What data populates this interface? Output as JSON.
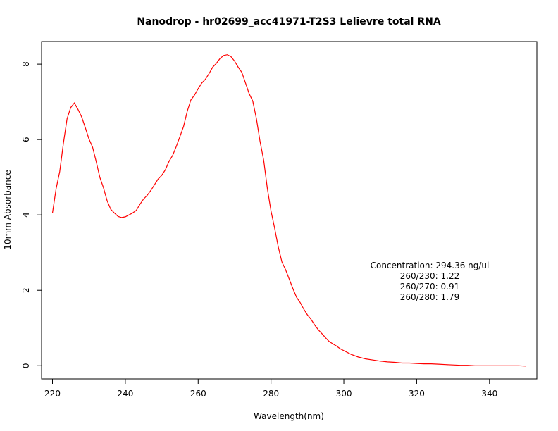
{
  "chart_data": {
    "type": "line",
    "title": "Nanodrop - hr02699_acc41971-T2S3 Lelievre total RNA",
    "xlabel": "Wavelength(nm)",
    "ylabel": "10mm Absorbance",
    "xlim": [
      217,
      353
    ],
    "ylim": [
      -0.35,
      8.6
    ],
    "xticks": [
      220,
      240,
      260,
      280,
      300,
      320,
      340
    ],
    "yticks": [
      0,
      2,
      4,
      6,
      8
    ],
    "grid": false,
    "line_color": "#ff0000",
    "annotations": [
      "Concentration: 294.36 ng/ul",
      "260/230: 1.22",
      "260/270: 0.91",
      "260/280: 1.79"
    ],
    "series": [
      {
        "x": [
          220,
          221,
          222,
          223,
          224,
          225,
          226,
          227,
          228,
          229,
          230,
          231,
          232,
          233,
          234,
          235,
          236,
          237,
          238,
          239,
          240,
          241,
          242,
          243,
          244,
          245,
          246,
          247,
          248,
          249,
          250,
          251,
          252,
          253,
          254,
          255,
          256,
          257,
          258,
          259,
          260,
          261,
          262,
          263,
          264,
          265,
          266,
          267,
          268,
          269,
          270,
          271,
          272,
          273,
          274,
          275,
          276,
          277,
          278,
          279,
          280,
          281,
          282,
          283,
          284,
          285,
          286,
          287,
          288,
          289,
          290,
          291,
          292,
          293,
          294,
          295,
          296,
          297,
          298,
          299,
          300,
          302,
          304,
          306,
          308,
          310,
          312,
          314,
          316,
          318,
          320,
          322,
          324,
          326,
          328,
          330,
          332,
          334,
          336,
          338,
          340,
          342,
          344,
          346,
          348,
          350
        ],
        "y": [
          4.05,
          4.7,
          5.15,
          5.9,
          6.55,
          6.85,
          6.97,
          6.8,
          6.6,
          6.32,
          6.02,
          5.8,
          5.42,
          5.0,
          4.72,
          4.38,
          4.15,
          4.05,
          3.96,
          3.93,
          3.95,
          4.0,
          4.05,
          4.12,
          4.28,
          4.42,
          4.52,
          4.65,
          4.8,
          4.95,
          5.05,
          5.2,
          5.42,
          5.58,
          5.82,
          6.08,
          6.35,
          6.75,
          7.05,
          7.18,
          7.35,
          7.5,
          7.6,
          7.75,
          7.92,
          8.02,
          8.15,
          8.23,
          8.25,
          8.2,
          8.08,
          7.92,
          7.78,
          7.5,
          7.22,
          7.02,
          6.55,
          5.95,
          5.45,
          4.7,
          4.1,
          3.65,
          3.15,
          2.75,
          2.55,
          2.3,
          2.05,
          1.82,
          1.68,
          1.5,
          1.35,
          1.23,
          1.08,
          0.95,
          0.85,
          0.74,
          0.64,
          0.58,
          0.52,
          0.45,
          0.4,
          0.3,
          0.23,
          0.18,
          0.15,
          0.12,
          0.1,
          0.09,
          0.07,
          0.07,
          0.06,
          0.05,
          0.05,
          0.04,
          0.03,
          0.02,
          0.01,
          0.01,
          0.0,
          0.0,
          0.0,
          0.0,
          0.0,
          0.0,
          0.0,
          -0.01
        ]
      }
    ]
  }
}
